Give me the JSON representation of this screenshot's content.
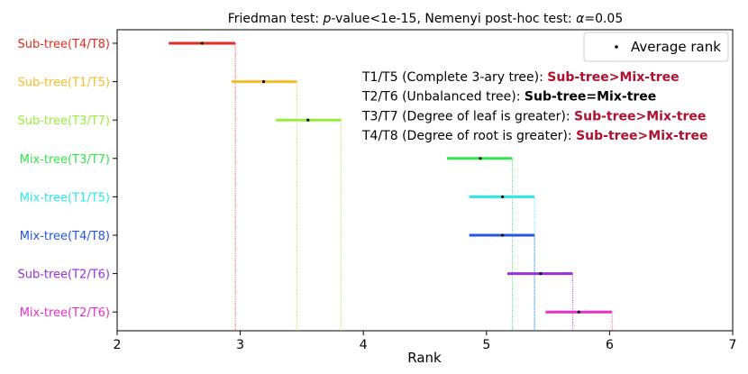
{
  "chart_data": {
    "type": "critical-difference-interval",
    "title": {
      "pre": "Friedman test: ",
      "p_italic": "p",
      "mid": "-value<1e-15, Nemenyi post-hoc test: ",
      "alpha_italic": "α",
      "post": "=0.05"
    },
    "xlabel": "Rank",
    "xlim": [
      2,
      7
    ],
    "xticks": [
      "2",
      "3",
      "4",
      "5",
      "6",
      "7"
    ],
    "groups": [
      {
        "label": "Sub-tree(T4/T8)",
        "color": "#e8291c",
        "mean": 2.69,
        "lo": 2.42,
        "hi": 2.96
      },
      {
        "label": "Sub-tree(T1/T5)",
        "color": "#f5bd2a",
        "mean": 3.19,
        "lo": 2.93,
        "hi": 3.46
      },
      {
        "label": "Sub-tree(T3/T7)",
        "color": "#97ef3a",
        "mean": 3.55,
        "lo": 3.29,
        "hi": 3.82
      },
      {
        "label": "Mix-tree(T3/T7)",
        "color": "#2ee84a",
        "mean": 4.95,
        "lo": 4.68,
        "hi": 5.21
      },
      {
        "label": "Mix-tree(T1/T5)",
        "color": "#2ee8e8",
        "mean": 5.13,
        "lo": 4.86,
        "hi": 5.39
      },
      {
        "label": "Mix-tree(T4/T8)",
        "color": "#2355de",
        "mean": 5.13,
        "lo": 4.86,
        "hi": 5.39
      },
      {
        "label": "Sub-tree(T2/T6)",
        "color": "#9a2ee0",
        "mean": 5.44,
        "lo": 5.17,
        "hi": 5.7
      },
      {
        "label": "Mix-tree(T2/T6)",
        "color": "#e82ec6",
        "mean": 5.75,
        "lo": 5.48,
        "hi": 6.02
      }
    ],
    "legend": {
      "label": "Average rank",
      "position": "top-right"
    },
    "annotations": [
      {
        "text": "T1/T5 (Complete 3-ary tree): ",
        "result": "Sub-tree>Mix-tree",
        "result_color": "#b01030"
      },
      {
        "text": "T2/T6 (Unbalanced tree): ",
        "result": "Sub-tree=Mix-tree",
        "result_color": "#000000"
      },
      {
        "text": "T3/T7 (Degree of leaf is greater): ",
        "result": "Sub-tree>Mix-tree",
        "result_color": "#b01030"
      },
      {
        "text": "T4/T8 (Degree of root is greater): ",
        "result": "Sub-tree>Mix-tree",
        "result_color": "#b01030"
      }
    ]
  }
}
